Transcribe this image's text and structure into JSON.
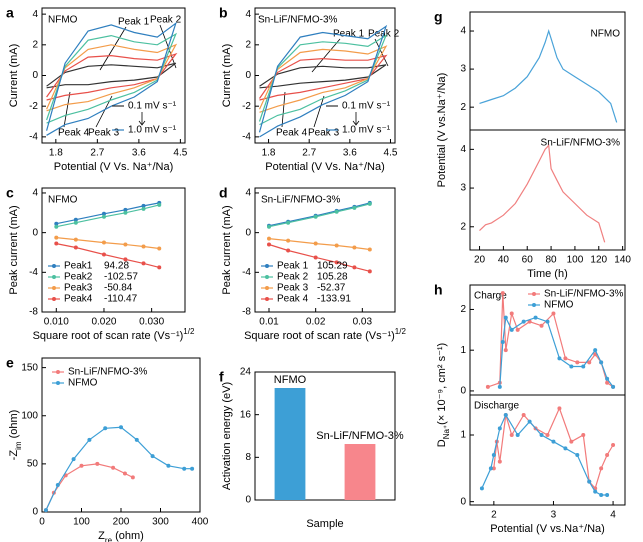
{
  "chart_data": [
    {
      "type": "line",
      "panel": "a",
      "annotations": [
        "NFMO",
        "Peak 1",
        "Peak 2",
        "Peak 4",
        "Peak 3"
      ],
      "xlabel": "Potential (V Vs. Na⁺/Na)",
      "ylabel": "Current (mA)",
      "xlim": [
        1.5,
        4.6
      ],
      "ylim": [
        -4.4,
        4.4
      ],
      "xticks": [
        1.8,
        2.7,
        3.6,
        4.5
      ],
      "yticks": [
        -4,
        -2,
        0,
        2,
        4
      ],
      "x": [
        1.6,
        2.0,
        2.5,
        3.0,
        3.5,
        4.0,
        4.4,
        4.0,
        3.5,
        3.0,
        2.5,
        2.0,
        1.6
      ],
      "series": [
        {
          "name": "0.1 mV s⁻¹",
          "color": "#333333",
          "values": [
            -0.7,
            0.2,
            0.6,
            0.7,
            0.6,
            0.5,
            0.8,
            -0.1,
            -0.3,
            -0.4,
            -0.6,
            -0.6,
            -0.8
          ]
        },
        {
          "color": "#e8504a",
          "values": [
            -1.4,
            0.3,
            1.2,
            1.3,
            1.1,
            1.0,
            1.4,
            -0.2,
            -0.6,
            -0.8,
            -1.1,
            -1.3,
            -1.6
          ]
        },
        {
          "color": "#f39c4a",
          "values": [
            -2.2,
            0.5,
            1.7,
            2.0,
            1.7,
            1.5,
            2.0,
            -0.2,
            -0.8,
            -1.2,
            -1.7,
            -1.9,
            -2.3
          ]
        },
        {
          "color": "#4cc0a0",
          "values": [
            -2.9,
            0.6,
            2.3,
            2.6,
            2.2,
            2.0,
            2.7,
            -0.3,
            -1.1,
            -1.6,
            -2.2,
            -2.6,
            -3.1
          ]
        },
        {
          "name": "1.0 mV s⁻¹",
          "color": "#2f7fbf",
          "values": [
            -3.6,
            0.8,
            2.9,
            3.3,
            2.8,
            2.5,
            3.4,
            -0.4,
            -1.4,
            -2.0,
            -2.8,
            -3.2,
            -3.9
          ]
        }
      ]
    },
    {
      "type": "line",
      "panel": "b",
      "annotations": [
        "Sn-LiF/NFMO-3%",
        "Peak 1",
        "Peak 2",
        "Peak 4",
        "Peak 3"
      ],
      "xlabel": "Potential (V Vs. Na⁺/Na)",
      "ylabel": "Current (mA)",
      "xlim": [
        1.5,
        4.6
      ],
      "ylim": [
        -4.4,
        4.4
      ],
      "xticks": [
        1.8,
        2.7,
        3.6,
        4.5
      ],
      "yticks": [
        -4,
        -2,
        0,
        2,
        4
      ],
      "x": [
        1.6,
        2.0,
        2.5,
        3.0,
        3.5,
        4.0,
        4.4,
        4.0,
        3.5,
        3.0,
        2.5,
        2.0,
        1.6
      ],
      "series": [
        {
          "name": "0.1 mV s⁻¹",
          "color": "#333333",
          "values": [
            -0.7,
            0.1,
            0.5,
            0.6,
            0.5,
            0.5,
            0.7,
            -0.1,
            -0.3,
            -0.4,
            -0.5,
            -0.7,
            -0.8
          ]
        },
        {
          "color": "#e8504a",
          "values": [
            -1.5,
            0.2,
            1.0,
            1.1,
            1.0,
            1.0,
            1.3,
            -0.2,
            -0.5,
            -0.8,
            -1.1,
            -1.3,
            -1.6
          ]
        },
        {
          "color": "#f39c4a",
          "values": [
            -2.2,
            0.4,
            1.5,
            1.7,
            1.6,
            1.4,
            1.9,
            -0.2,
            -0.8,
            -1.1,
            -1.6,
            -2.0,
            -2.4
          ]
        },
        {
          "color": "#4cc0a0",
          "values": [
            -3.0,
            0.5,
            2.0,
            2.2,
            2.1,
            1.9,
            2.6,
            -0.3,
            -1.0,
            -1.5,
            -2.2,
            -2.6,
            -3.2
          ]
        },
        {
          "name": "1.0 mV s⁻¹",
          "color": "#2f7fbf",
          "values": [
            -3.7,
            0.6,
            2.5,
            2.8,
            2.6,
            2.4,
            3.2,
            -0.4,
            -1.3,
            -1.9,
            -2.7,
            -3.3,
            -4.0
          ]
        }
      ]
    },
    {
      "type": "line",
      "markers": true,
      "panel": "c",
      "annotations": [
        "NFMO"
      ],
      "xlabel": {
        "text": "Square root of scan rate (Vs⁻¹)",
        "sup": "1/2"
      },
      "ylabel": "Peak current (mA)",
      "xlim": [
        0.007,
        0.037
      ],
      "ylim": [
        -8,
        4.5
      ],
      "xticks": [
        {
          "value": 0.01,
          "label": "0.010"
        },
        {
          "value": 0.02,
          "label": "0.020"
        },
        {
          "value": 0.03,
          "label": "0.030"
        }
      ],
      "yticks": [
        -8,
        -4,
        0,
        4
      ],
      "x": [
        0.01,
        0.0141,
        0.02,
        0.0245,
        0.0283,
        0.0316
      ],
      "series": [
        {
          "name": "Peak1",
          "slope": 94.28,
          "color": "#2f7fbf",
          "values": [
            0.9,
            1.3,
            1.9,
            2.3,
            2.7,
            3.0
          ]
        },
        {
          "name": "Peak2",
          "slope": -102.57,
          "color": "#4cc0a0",
          "values": [
            0.6,
            1.0,
            1.6,
            2.0,
            2.4,
            2.8
          ]
        },
        {
          "name": "Peak3",
          "slope": -50.84,
          "color": "#f39c4a",
          "values": [
            -0.5,
            -0.7,
            -1.0,
            -1.2,
            -1.4,
            -1.6
          ]
        },
        {
          "name": "Peak4",
          "slope": -110.47,
          "color": "#e8504a",
          "values": [
            -1.1,
            -1.5,
            -2.2,
            -2.7,
            -3.1,
            -3.5
          ]
        }
      ]
    },
    {
      "type": "line",
      "markers": true,
      "panel": "d",
      "annotations": [
        "Sn-LiF/NFMO-3%"
      ],
      "xlabel": {
        "text": "Square root of scan rate (Vs⁻¹)",
        "sup": "1/2"
      },
      "ylabel": "Peak current (mA)",
      "xlim": [
        0.007,
        0.037
      ],
      "ylim": [
        -8,
        4.5
      ],
      "xticks": [
        0.01,
        0.02,
        0.03
      ],
      "yticks": [
        -8,
        -4,
        0,
        4
      ],
      "x": [
        0.01,
        0.0141,
        0.02,
        0.0245,
        0.0283,
        0.0316
      ],
      "series": [
        {
          "name": "Peak 1",
          "slope": 105.29,
          "color": "#2f7fbf",
          "values": [
            0.7,
            1.1,
            1.7,
            2.2,
            2.6,
            3.0
          ]
        },
        {
          "name": "Peak 2",
          "slope": 105.28,
          "color": "#4cc0a0",
          "values": [
            0.6,
            1.0,
            1.6,
            2.1,
            2.5,
            2.9
          ]
        },
        {
          "name": "Peak 3",
          "slope": -52.37,
          "color": "#f39c4a",
          "values": [
            -0.6,
            -0.8,
            -1.1,
            -1.3,
            -1.5,
            -1.7
          ]
        },
        {
          "name": "Peak 4",
          "slope": -133.91,
          "color": "#e8504a",
          "values": [
            -1.2,
            -1.8,
            -2.5,
            -3.0,
            -3.5,
            -3.9
          ]
        }
      ]
    },
    {
      "type": "line",
      "markers": true,
      "panel": "e",
      "legend": "upper left",
      "xlabel": {
        "text": "Z",
        "sub": "re",
        "rest": " (ohm)"
      },
      "ylabel": {
        "text": "-Z",
        "sub": "im",
        "rest": " (ohm)"
      },
      "xlim": [
        0,
        400
      ],
      "ylim": [
        0,
        160
      ],
      "xticks": [
        0,
        100,
        200,
        300,
        400
      ],
      "yticks": [
        0,
        50,
        100,
        150
      ],
      "series": [
        {
          "name": "Sn-LiF/NFMO-3%",
          "color": "#f27b7b",
          "x": [
            10,
            30,
            60,
            100,
            140,
            180,
            210,
            230
          ],
          "values": [
            2,
            20,
            38,
            48,
            50,
            46,
            40,
            36
          ]
        },
        {
          "name": "NFMO",
          "color": "#3d9fd6",
          "x": [
            10,
            40,
            80,
            120,
            160,
            200,
            240,
            280,
            320,
            360,
            380
          ],
          "values": [
            2,
            28,
            55,
            75,
            87,
            88,
            75,
            58,
            48,
            45,
            45
          ]
        }
      ]
    },
    {
      "type": "bar",
      "panel": "f",
      "xlabel": "Sample",
      "ylabel": "Activation energy (eV)",
      "categories": [
        "NFMO",
        "Sn-LiF/NFMO-3%"
      ],
      "values": [
        21,
        10.5
      ],
      "colors": [
        "#3d9fd6",
        "#f7868c"
      ],
      "ylim": [
        0,
        24
      ],
      "yticks": [
        0,
        8,
        16,
        24
      ]
    },
    {
      "type": "line",
      "panel": "g",
      "annotations": [
        "NFMO"
      ],
      "xlim": [
        12,
        142
      ],
      "ylim": [
        1.4,
        4.5
      ],
      "yticks": [
        2,
        3,
        4
      ],
      "x": [
        20,
        25,
        30,
        40,
        50,
        60,
        70,
        75,
        78,
        80,
        85,
        90,
        100,
        110,
        120,
        130,
        135
      ],
      "series": [
        {
          "color": "#4aa3d9",
          "values": [
            2.1,
            2.15,
            2.2,
            2.3,
            2.5,
            2.8,
            3.3,
            3.7,
            4.0,
            3.8,
            3.3,
            3.0,
            2.8,
            2.6,
            2.4,
            2.1,
            1.6
          ]
        }
      ]
    },
    {
      "type": "line",
      "annotations": [
        "Sn-LiF/NFMO-3%"
      ],
      "xlabel": "Time (h)",
      "ylabel": "Potential (V vs.Na⁺/Na)",
      "xlim": [
        12,
        142
      ],
      "ylim": [
        1.4,
        4.5
      ],
      "xticks": [
        20,
        40,
        60,
        80,
        100,
        120,
        140
      ],
      "yticks": [
        2,
        3,
        4
      ],
      "x": [
        20,
        25,
        30,
        40,
        50,
        60,
        70,
        75,
        78,
        80,
        85,
        90,
        100,
        110,
        120,
        125
      ],
      "series": [
        {
          "color": "#f08080",
          "values": [
            1.9,
            2.05,
            2.1,
            2.3,
            2.6,
            3.1,
            3.7,
            4.0,
            4.1,
            3.5,
            3.2,
            2.9,
            2.6,
            2.3,
            2.1,
            1.6
          ]
        }
      ]
    },
    {
      "type": "line",
      "markers": true,
      "panel": "h",
      "annotations": [
        "Charge"
      ],
      "legend": "upper right",
      "xlim": [
        1.6,
        4.2
      ],
      "ylim": [
        -0.1,
        2.6
      ],
      "yticks": [
        0,
        1,
        2
      ],
      "series": [
        {
          "name": "Sn-LiF/NFMO-3%",
          "color": "#f27b7b",
          "x": [
            1.9,
            2.1,
            2.15,
            2.2,
            2.3,
            2.4,
            2.6,
            2.8,
            3.0,
            3.2,
            3.4,
            3.6,
            3.7,
            3.8,
            3.9,
            4.0
          ],
          "values": [
            0.1,
            0.2,
            2.4,
            1.0,
            1.9,
            1.5,
            1.7,
            1.6,
            1.9,
            0.8,
            0.7,
            0.7,
            0.9,
            0.7,
            0.2,
            0.1
          ]
        },
        {
          "name": "NFMO",
          "color": "#3d9fd6",
          "x": [
            2.1,
            2.15,
            2.2,
            2.3,
            2.5,
            2.7,
            2.9,
            3.1,
            3.3,
            3.5,
            3.7,
            3.8,
            3.9,
            4.0
          ],
          "values": [
            0.1,
            1.2,
            1.8,
            1.5,
            1.7,
            1.8,
            1.7,
            0.8,
            0.6,
            0.6,
            1.0,
            0.7,
            0.3,
            0.1
          ]
        }
      ]
    },
    {
      "type": "line",
      "markers": true,
      "annotations": [
        "Discharge"
      ],
      "xlabel": "Potential (V vs.Na⁺/Na)",
      "ylabel": {
        "text": "D",
        "sub": "Na⁺",
        "rest": "(× 10⁻⁹, cm² s⁻¹)"
      },
      "xlim": [
        1.6,
        4.2
      ],
      "ylim": [
        -0.05,
        1.6
      ],
      "xticks": [
        2,
        3,
        4
      ],
      "yticks": [
        0,
        1
      ],
      "series": [
        {
          "color": "#f27b7b",
          "x": [
            2.0,
            2.05,
            2.1,
            2.2,
            2.3,
            2.5,
            2.7,
            2.9,
            3.1,
            3.3,
            3.5,
            3.6,
            3.7,
            3.8,
            3.9,
            4.0
          ],
          "values": [
            0.5,
            0.9,
            0.6,
            1.3,
            1.0,
            1.3,
            1.1,
            1.0,
            1.4,
            0.9,
            1.0,
            0.3,
            0.2,
            0.5,
            0.7,
            0.85
          ]
        },
        {
          "color": "#3d9fd6",
          "x": [
            1.8,
            1.95,
            2.0,
            2.1,
            2.2,
            2.4,
            2.6,
            2.8,
            3.0,
            3.2,
            3.4,
            3.6,
            3.7,
            3.8,
            3.9
          ],
          "values": [
            0.2,
            0.5,
            0.7,
            1.1,
            1.3,
            1.0,
            1.2,
            1.0,
            0.9,
            0.8,
            0.7,
            0.3,
            0.15,
            0.1,
            0.1
          ]
        }
      ]
    }
  ]
}
